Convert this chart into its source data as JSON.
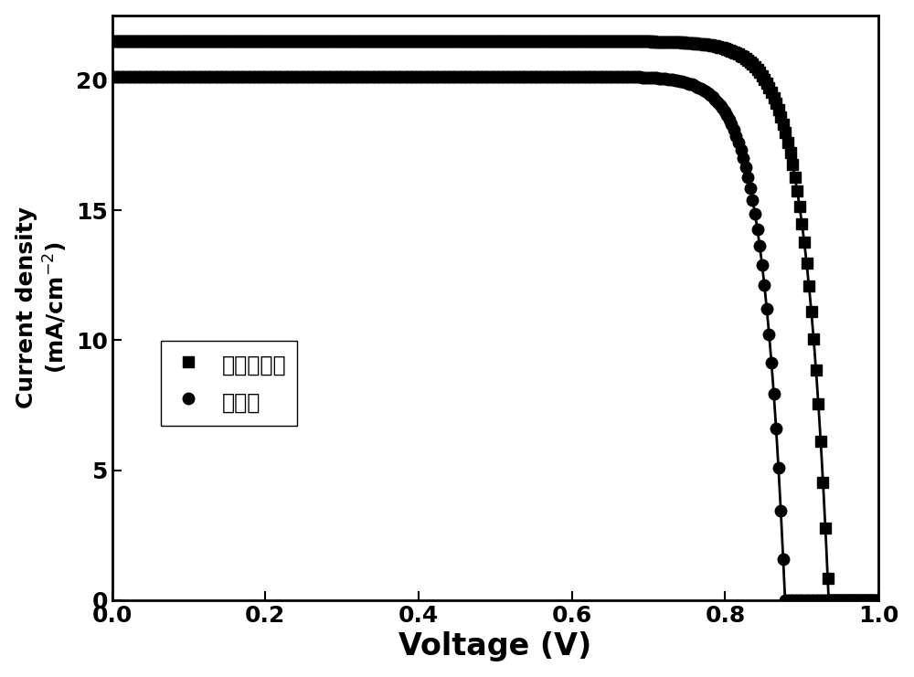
{
  "series1_label": "乙酰丙酮铅",
  "series2_label": "醋酸铅",
  "series1_marker": "s",
  "series2_marker": "o",
  "series1_color": "#000000",
  "series2_color": "#000000",
  "series1_Jsc": 21.5,
  "series1_Voc": 0.935,
  "series1_n_factor": 30,
  "series2_Jsc": 20.15,
  "series2_Voc": 0.878,
  "series2_n_factor": 30,
  "xlabel": "Voltage (V)",
  "ylabel_line1": "Current density",
  "ylabel_line2": "(mA/cm⁻²)",
  "xlim": [
    0.0,
    1.0
  ],
  "ylim": [
    0.0,
    22.5
  ],
  "xticks": [
    0.0,
    0.2,
    0.4,
    0.6,
    0.8,
    1.0
  ],
  "yticks": [
    0,
    5,
    10,
    15,
    20
  ],
  "xlabel_fontsize": 24,
  "ylabel_fontsize": 18,
  "tick_fontsize": 18,
  "legend_fontsize": 17,
  "background_color": "#ffffff",
  "line_width": 2.0,
  "marker_size": 9,
  "dense_marker_every": 6
}
